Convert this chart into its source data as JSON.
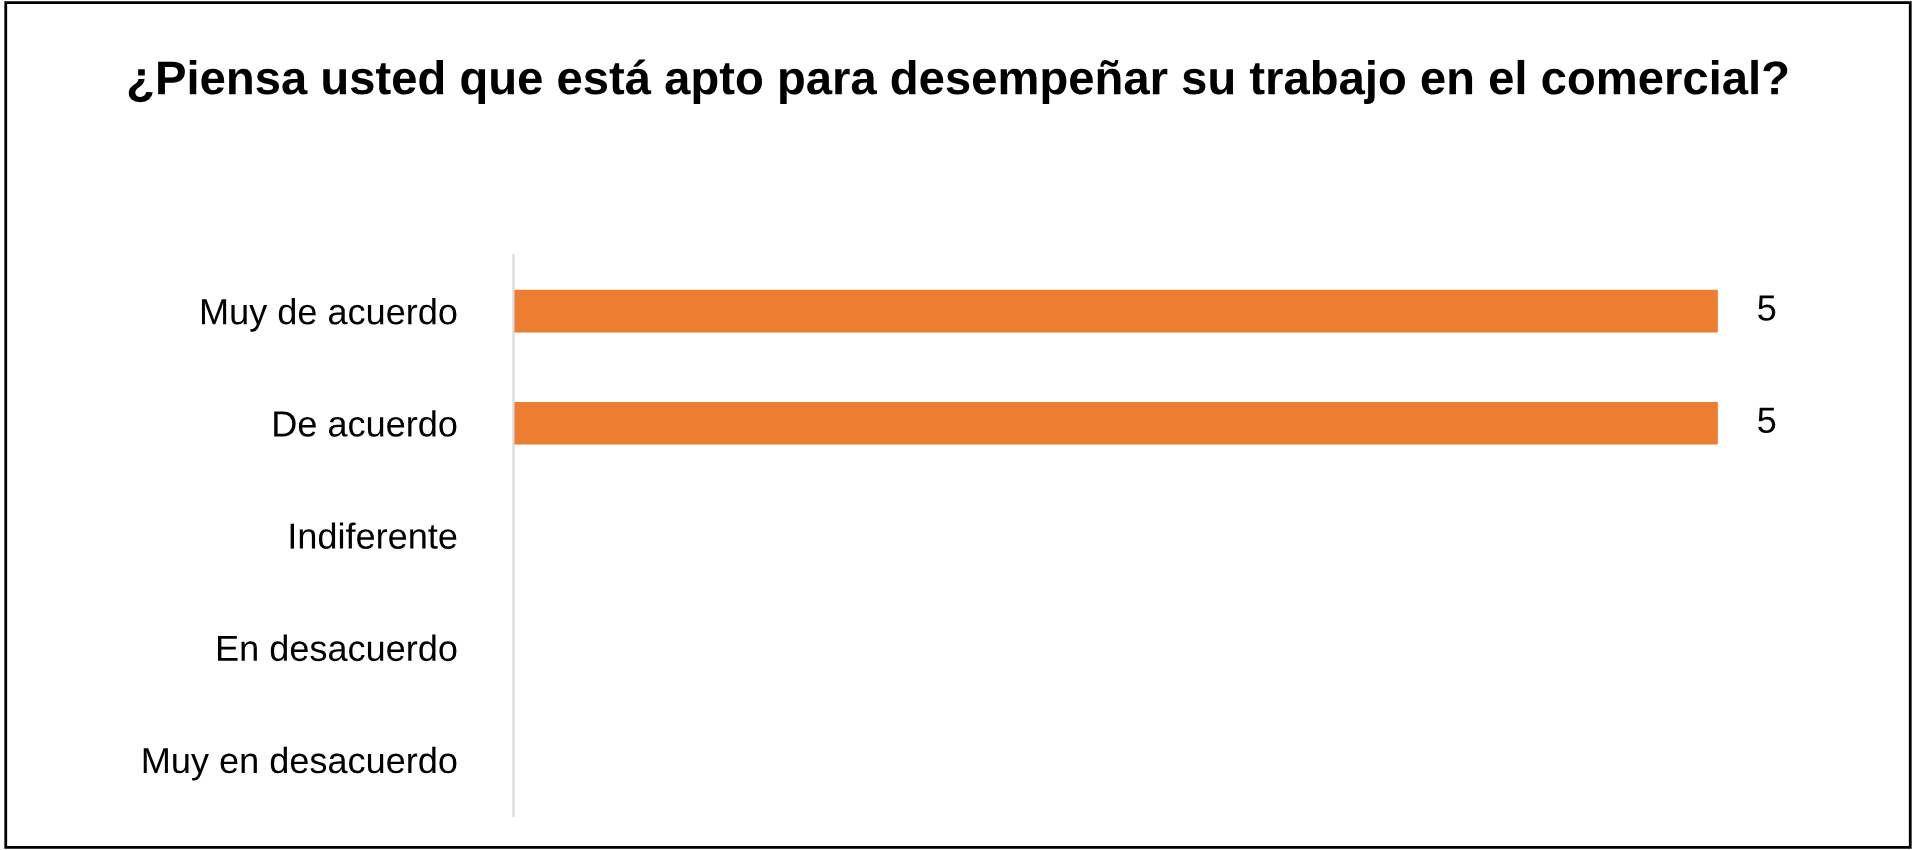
{
  "chart_data": {
    "type": "bar",
    "orientation": "horizontal",
    "title": "¿Piensa usted que está apto para desempeñar su trabajo en el comercial?",
    "categories": [
      "Muy de acuerdo",
      "De acuerdo",
      "Indiferente",
      "En desacuerdo",
      "Muy en desacuerdo"
    ],
    "values": [
      5,
      5,
      0,
      0,
      0
    ],
    "value_labels": [
      "5",
      "5",
      null,
      null,
      null
    ],
    "color": "#ed7d31",
    "grid": false,
    "legend": false,
    "tick_labels": "y"
  }
}
